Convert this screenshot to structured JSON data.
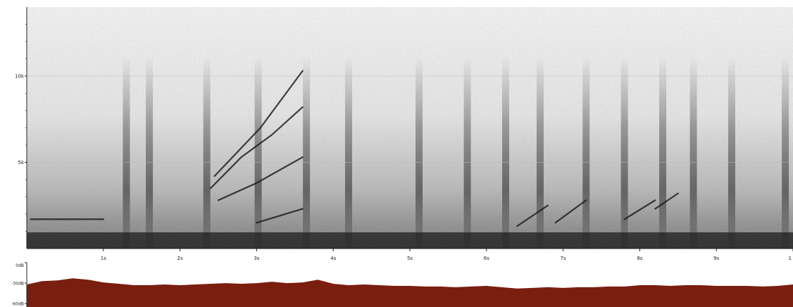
{
  "chart_data": [
    {
      "type": "heatmap",
      "x_tick_labels": [
        "1s",
        "2s",
        "3s",
        "4s",
        "5s",
        "6s",
        "7s",
        "8s",
        "9s",
        "1"
      ],
      "x_tick_values": [
        1,
        2,
        3,
        4,
        5,
        6,
        7,
        8,
        9,
        10
      ],
      "y_tick_labels": [
        "10k",
        "5k"
      ],
      "y_tick_values": [
        10000,
        5000
      ],
      "xlim": [
        0,
        10
      ],
      "ylim": [
        0,
        14000
      ],
      "grid": true,
      "noise_color": "#4a4a4a",
      "vertical_bursts_s": [
        1.3,
        1.6,
        2.35,
        3.02,
        3.65,
        4.2,
        5.12,
        5.75,
        6.25,
        6.7,
        7.3,
        7.8,
        8.3,
        8.7,
        9.2,
        9.9
      ],
      "harmonic_lines": [
        {
          "points": [
            [
              2.4,
              3500
            ],
            [
              2.8,
              5300
            ],
            [
              3.2,
              6600
            ],
            [
              3.6,
              8200
            ]
          ]
        },
        {
          "points": [
            [
              2.5,
              2800
            ],
            [
              3.0,
              3800
            ],
            [
              3.6,
              5300
            ]
          ]
        },
        {
          "points": [
            [
              2.45,
              4200
            ],
            [
              3.05,
              7000
            ],
            [
              3.6,
              10300
            ]
          ]
        },
        {
          "points": [
            [
              3.0,
              1500
            ],
            [
              3.6,
              2300
            ]
          ]
        },
        {
          "points": [
            [
              0.05,
              1700
            ],
            [
              1.0,
              1700
            ]
          ]
        },
        {
          "points": [
            [
              6.4,
              1300
            ],
            [
              6.8,
              2500
            ]
          ]
        },
        {
          "points": [
            [
              6.9,
              1500
            ],
            [
              7.3,
              2800
            ]
          ]
        },
        {
          "points": [
            [
              7.8,
              1700
            ],
            [
              8.2,
              2800
            ]
          ]
        },
        {
          "points": [
            [
              8.2,
              2300
            ],
            [
              8.5,
              3200
            ]
          ]
        }
      ]
    },
    {
      "type": "area",
      "y_tick_labels": [
        "0dB",
        "-30dB",
        "-60dB"
      ],
      "y_tick_values": [
        0,
        -30,
        -60
      ],
      "ylim": [
        -65,
        0
      ],
      "xlim": [
        0,
        10
      ],
      "fill_color": "#7a1e10",
      "x": [
        0,
        0.2,
        0.4,
        0.6,
        0.8,
        1.0,
        1.2,
        1.4,
        1.6,
        1.8,
        2.0,
        2.2,
        2.4,
        2.6,
        2.8,
        3.0,
        3.2,
        3.4,
        3.6,
        3.8,
        4.0,
        4.2,
        4.4,
        4.6,
        4.8,
        5.0,
        5.2,
        5.4,
        5.6,
        5.8,
        6.0,
        6.2,
        6.4,
        6.6,
        6.8,
        7.0,
        7.2,
        7.4,
        7.6,
        7.8,
        8.0,
        8.2,
        8.4,
        8.6,
        8.8,
        9.0,
        9.2,
        9.4,
        9.6,
        9.8,
        10.0
      ],
      "values": [
        -32,
        -27,
        -26,
        -23,
        -25,
        -29,
        -31,
        -33,
        -33,
        -32,
        -33,
        -32,
        -31,
        -30,
        -31,
        -30,
        -28,
        -30,
        -29,
        -25,
        -31,
        -33,
        -32,
        -33,
        -34,
        -34,
        -35,
        -35,
        -36,
        -35,
        -34,
        -36,
        -38,
        -37,
        -36,
        -37,
        -36,
        -36,
        -35,
        -35,
        -33,
        -33,
        -34,
        -33,
        -33,
        -34,
        -34,
        -34,
        -35,
        -34,
        -32
      ]
    }
  ]
}
